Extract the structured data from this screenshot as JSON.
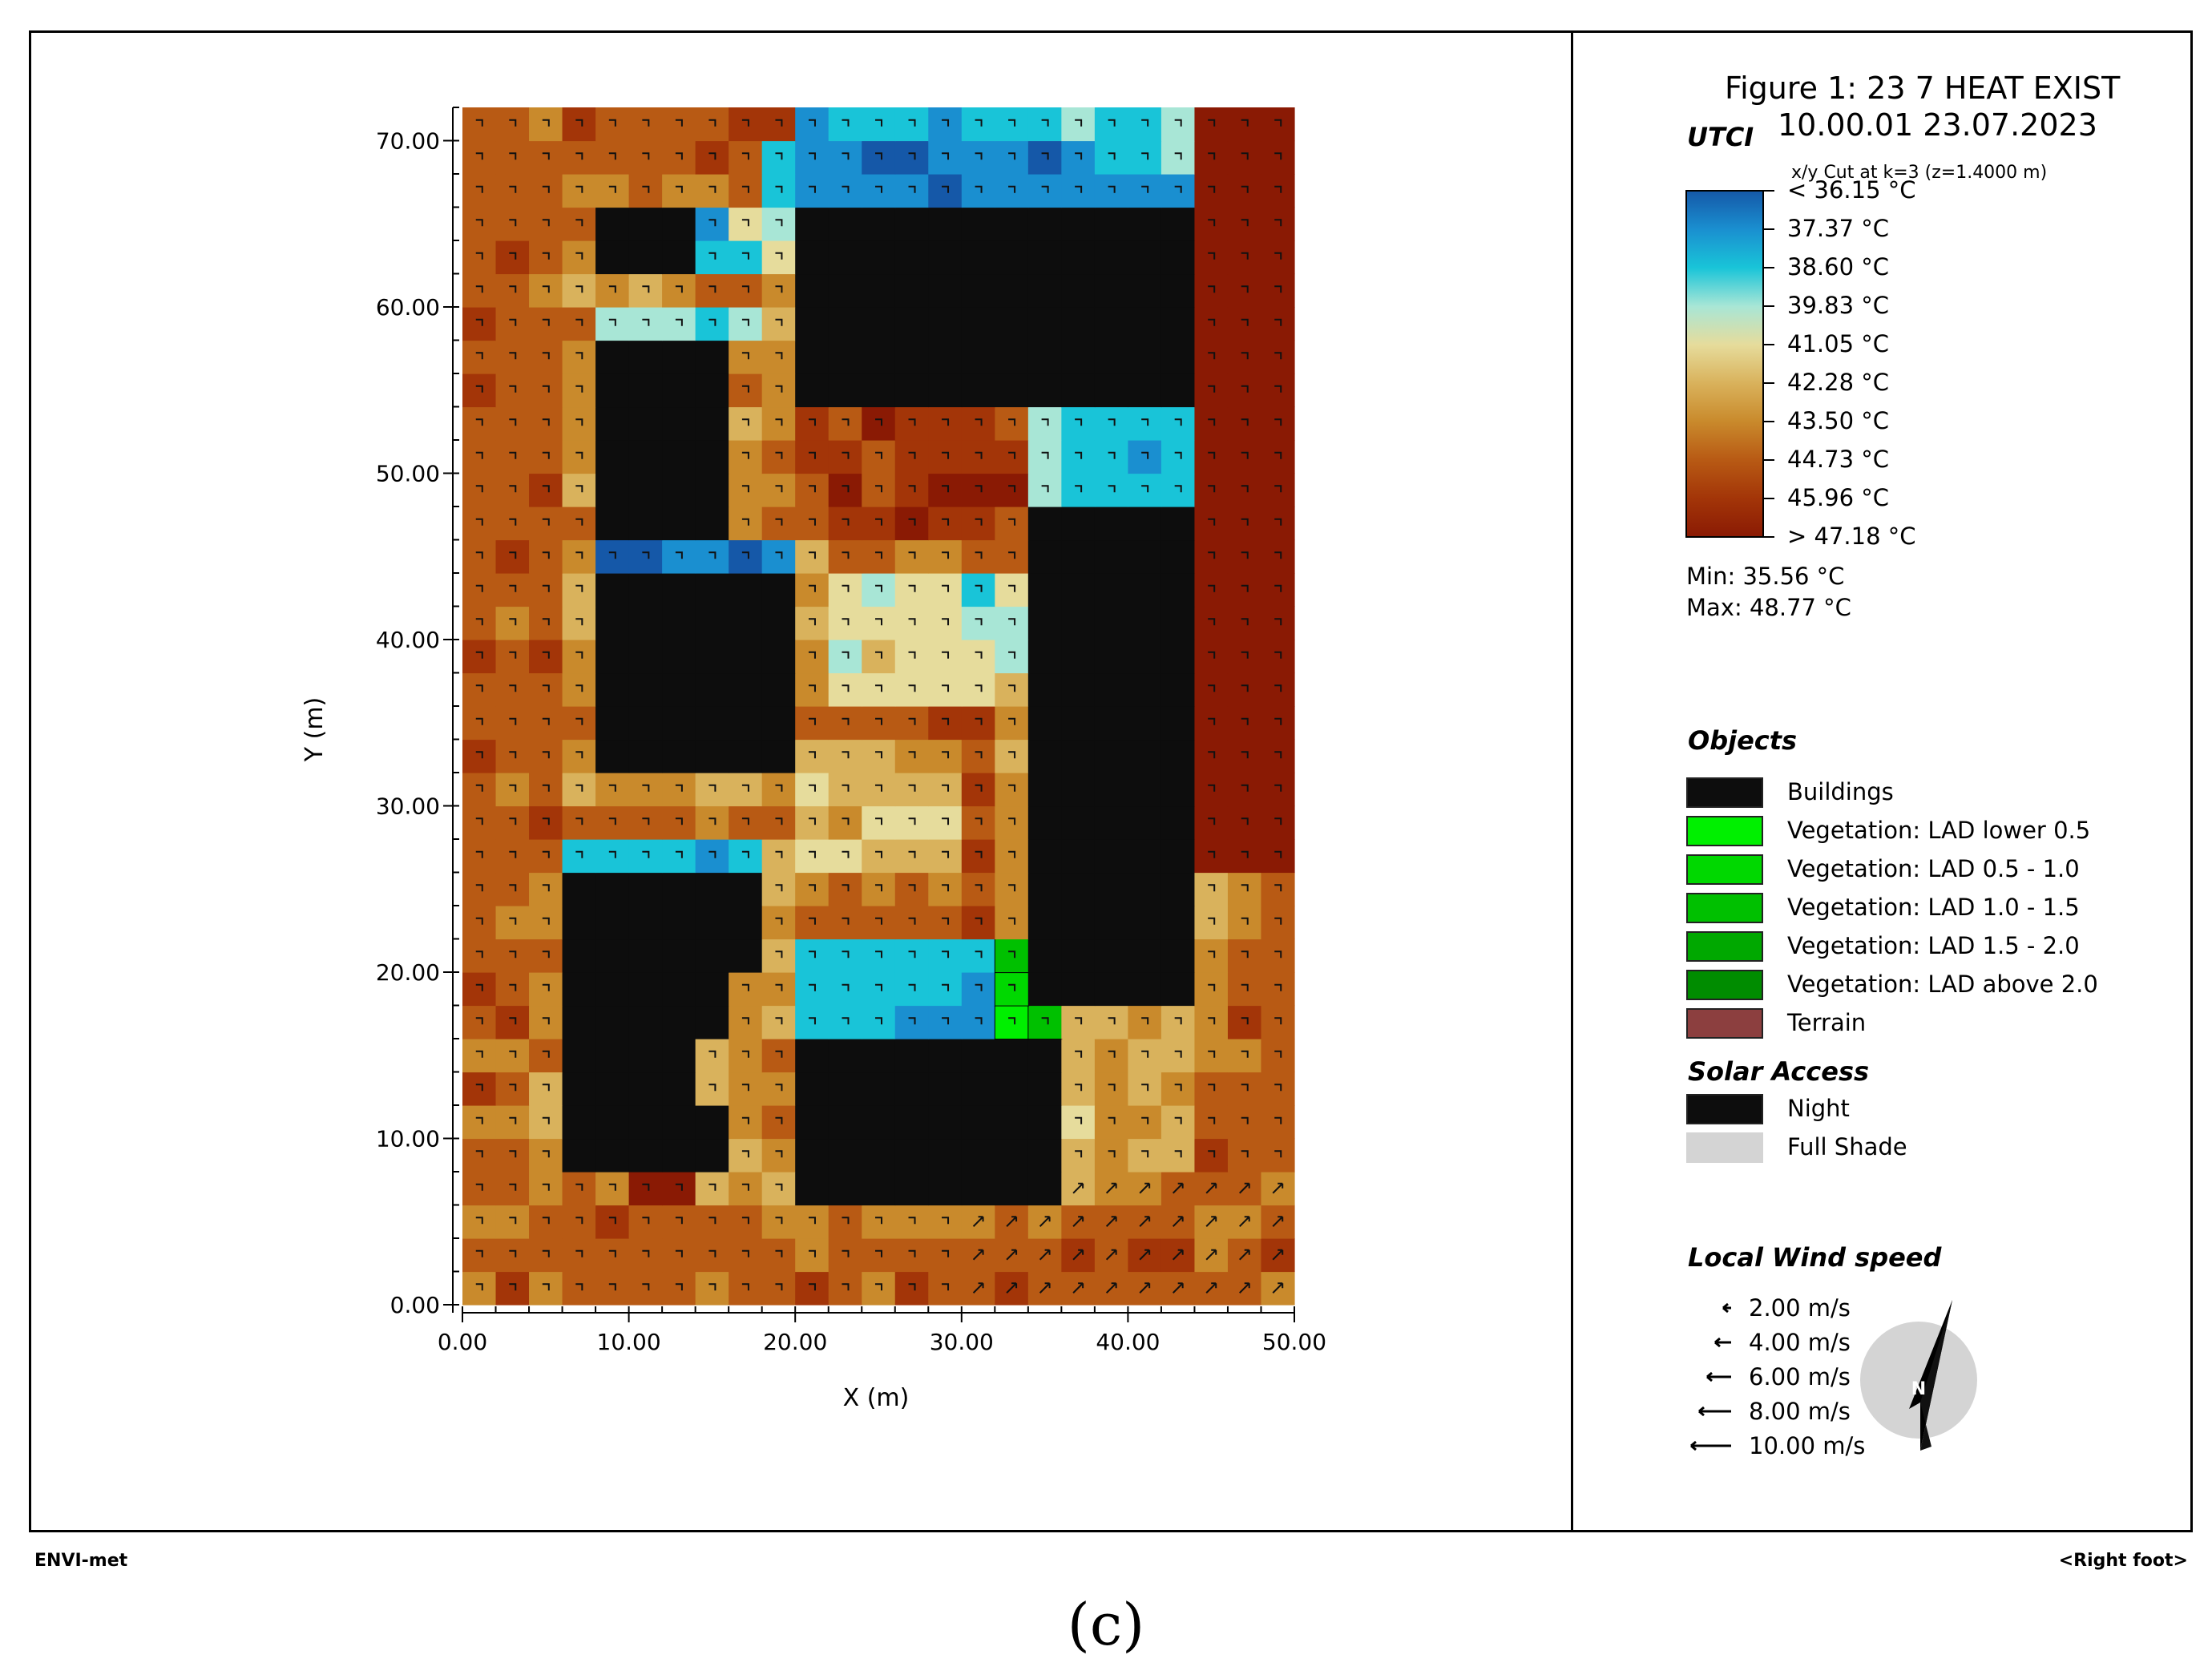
{
  "figure": {
    "title_line1": "Figure 1: 23 7 HEAT EXIST",
    "title_line2": "10.00.01 23.07.2023",
    "cut_info": "x/y Cut at k=3 (z=1.4000 m)"
  },
  "utci": {
    "header": "UTCI",
    "scale_labels": [
      "< 36.15 °C",
      "37.37  °C",
      "38.60  °C",
      "39.83  °C",
      "41.05  °C",
      "42.28  °C",
      "43.50  °C",
      "44.73  °C",
      "45.96  °C",
      "> 47.18 °C"
    ],
    "colors": [
      "#1558a8",
      "#1a8fd0",
      "#19c4d8",
      "#a8e6d6",
      "#e6dc9c",
      "#d9b25c",
      "#c98a2c",
      "#b85a14",
      "#a33508",
      "#8a1a04"
    ],
    "min_text": "Min: 35.56 °C",
    "max_text": "Max: 48.77 °C"
  },
  "objects": {
    "header": "Objects",
    "items": [
      {
        "label": "Buildings",
        "color": "#0d0d0d"
      },
      {
        "label": "Vegetation: LAD lower 0.5",
        "color": "#00f000"
      },
      {
        "label": "Vegetation:  LAD 0.5 - 1.0",
        "color": "#00d800"
      },
      {
        "label": "Vegetation:  LAD 1.0 - 1.5",
        "color": "#00c000"
      },
      {
        "label": "Vegetation:  LAD 1.5 - 2.0",
        "color": "#00a800"
      },
      {
        "label": "Vegetation:  LAD above 2.0",
        "color": "#008c00"
      },
      {
        "label": "Terrain",
        "color": "#8c3f3f"
      }
    ]
  },
  "solar": {
    "header": "Solar Access",
    "items": [
      {
        "label": "Night",
        "color": "#0d0d0d"
      },
      {
        "label": "Full Shade",
        "color": "#d4d4d4"
      }
    ]
  },
  "wind": {
    "header": "Local Wind speed",
    "items": [
      "2.00 m/s",
      "4.00 m/s",
      "6.00 m/s",
      "8.00 m/s",
      "10.00 m/s"
    ],
    "north_label": "N"
  },
  "footer": {
    "left": "ENVI-met",
    "right": "<Right foot>"
  },
  "caption": "(c)",
  "chart_data": {
    "type": "heatmap",
    "xlabel": "X (m)",
    "ylabel": "Y (m)",
    "xlim": [
      0,
      50
    ],
    "ylim": [
      0,
      72
    ],
    "x_ticks": [
      "0.00",
      "10.00",
      "20.00",
      "30.00",
      "40.00",
      "50.00"
    ],
    "y_ticks": [
      "0.00",
      "10.00",
      "20.00",
      "30.00",
      "40.00",
      "50.00",
      "60.00",
      "70.00"
    ],
    "cell_size_m": 2,
    "buildings": [
      {
        "x": [
          20,
          44
        ],
        "y": [
          54,
          66
        ]
      },
      {
        "x": [
          8,
          14
        ],
        "y": [
          62,
          66
        ]
      },
      {
        "x": [
          8,
          16
        ],
        "y": [
          46,
          58
        ]
      },
      {
        "x": [
          8,
          20
        ],
        "y": [
          32,
          44
        ]
      },
      {
        "x": [
          34,
          44
        ],
        "y": [
          18,
          48
        ]
      },
      {
        "x": [
          6,
          18
        ],
        "y": [
          20,
          26
        ]
      },
      {
        "x": [
          6,
          8
        ],
        "y": [
          8,
          20
        ]
      },
      {
        "x": [
          8,
          14
        ],
        "y": [
          8,
          20
        ]
      },
      {
        "x": [
          14,
          16
        ],
        "y": [
          8,
          12
        ]
      },
      {
        "x": [
          14,
          16
        ],
        "y": [
          16,
          20
        ]
      },
      {
        "x": [
          20,
          36
        ],
        "y": [
          6,
          16
        ]
      }
    ],
    "vegetation": [
      {
        "x": [
          32,
          34
        ],
        "y": [
          20,
          22
        ],
        "class": "LAD 1.0 - 1.5"
      },
      {
        "x": [
          32,
          34
        ],
        "y": [
          18,
          20
        ],
        "class": "LAD 0.5 - 1.0"
      },
      {
        "x": [
          32,
          34
        ],
        "y": [
          16,
          18
        ],
        "class": "LAD lower 0.5"
      },
      {
        "x": [
          34,
          36
        ],
        "y": [
          16,
          18
        ],
        "class": "LAD 1.0 - 1.5"
      }
    ],
    "utci_zones": [
      {
        "x": [
          20,
          44
        ],
        "y": [
          70,
          72
        ],
        "level": 2
      },
      {
        "x": [
          20,
          44
        ],
        "y": [
          66,
          70
        ],
        "level": 1
      },
      {
        "x": [
          42,
          44
        ],
        "y": [
          68,
          72
        ],
        "level": 3
      },
      {
        "x": [
          18,
          20
        ],
        "y": [
          66,
          70
        ],
        "level": 2
      },
      {
        "x": [
          8,
          16
        ],
        "y": [
          62,
          66
        ],
        "level": 2
      },
      {
        "x": [
          16,
          20
        ],
        "y": [
          62,
          66
        ],
        "level": 3
      },
      {
        "x": [
          8,
          18
        ],
        "y": [
          58,
          60
        ],
        "level": 3
      },
      {
        "x": [
          34,
          44
        ],
        "y": [
          48,
          54
        ],
        "level": 2
      },
      {
        "x": [
          8,
          20
        ],
        "y": [
          44,
          46
        ],
        "level": 1
      },
      {
        "x": [
          6,
          18
        ],
        "y": [
          26,
          28
        ],
        "level": 2
      },
      {
        "x": [
          20,
          32
        ],
        "y": [
          16,
          22
        ],
        "level": 2
      },
      {
        "x": [
          28,
          32
        ],
        "y": [
          16,
          20
        ],
        "level": 1
      },
      {
        "x": [
          6,
          8
        ],
        "y": [
          16,
          20
        ],
        "level": 1
      },
      {
        "x": [
          14,
          16
        ],
        "y": [
          16,
          20
        ],
        "level": 1
      },
      {
        "x": [
          22,
          32
        ],
        "y": [
          36,
          44
        ],
        "level": 4
      },
      {
        "x": [
          30,
          34
        ],
        "y": [
          38,
          44
        ],
        "level": 3
      },
      {
        "x": [
          20,
          30
        ],
        "y": [
          26,
          34
        ],
        "level": 5
      },
      {
        "x": [
          36,
          44
        ],
        "y": [
          8,
          18
        ],
        "level": 5
      },
      {
        "x": [
          44,
          50
        ],
        "y": [
          26,
          72
        ],
        "level": 9
      },
      {
        "x": [
          20,
          34
        ],
        "y": [
          46,
          54
        ],
        "level": 8
      },
      {
        "x": [
          10,
          14
        ],
        "y": [
          6,
          8
        ],
        "level": 9
      }
    ],
    "utci_range": [
      35.56,
      48.77
    ]
  }
}
